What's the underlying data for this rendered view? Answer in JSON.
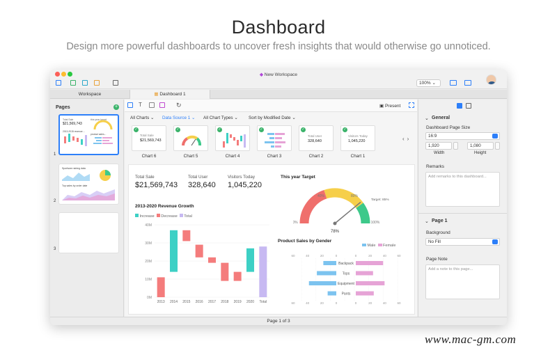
{
  "hero": {
    "title": "Dashboard",
    "subtitle": "Design more powerful dashboards to uncover fresh insights that would otherwise go unnoticed."
  },
  "window": {
    "title": "New Workspace",
    "zoom": "100%",
    "tabs": [
      "Workspace",
      "Dashboard 1"
    ]
  },
  "sidebar": {
    "title": "Pages",
    "pages": [
      {
        "num": "1",
        "preview": {
          "label1": "Total Sale",
          "value1": "$21,569,743",
          "label2": "this year target",
          "label3": "2013-2015 revenue ...",
          "label4": "product sales..."
        }
      },
      {
        "num": "2",
        "preview": {
          "label1": "Sportswe raining data",
          "label2": "Top sales by order date"
        }
      },
      {
        "num": "3",
        "preview": {}
      }
    ]
  },
  "toolbar": {
    "present": "Present"
  },
  "filters": [
    "All Charts",
    "Data Source 1",
    "All Chart Types",
    "Sort by Modified Date"
  ],
  "charts": [
    "Chart 6",
    "Chart 5",
    "Chart 4",
    "Chart 3",
    "Chart 2",
    "Chart 1"
  ],
  "chart_cards_text": {
    "chart2_label": "Total User",
    "chart2_value": "328,640",
    "chart1_label": "Visitors Today",
    "chart1_value": "1,045,220",
    "chart6_label": "Total Sale",
    "chart6_value": "$21,569,743"
  },
  "canvas": {
    "kpis": [
      {
        "label": "Total Sale",
        "value": "$21,569,743"
      },
      {
        "label": "Total User",
        "value": "328,640"
      },
      {
        "label": "Visitors Today",
        "value": "1,045,220"
      }
    ]
  },
  "chart_data": [
    {
      "type": "bar",
      "title": "2013-2020 Revenue Growth",
      "legend": [
        "Increase",
        "Decrease",
        "Total"
      ],
      "categories": [
        "2013",
        "2014",
        "2015",
        "2016",
        "2017",
        "2018",
        "2019",
        "2020",
        "Total"
      ],
      "series": [
        {
          "name": "Increase",
          "color": "#3dd0c5"
        },
        {
          "name": "Decrease",
          "color": "#f47c7c"
        },
        {
          "name": "Total",
          "color": "#c7b9f2"
        }
      ],
      "waterfall": [
        {
          "from": 0,
          "to": 11,
          "kind": "Decrease"
        },
        {
          "from": 14,
          "to": 37,
          "kind": "Increase"
        },
        {
          "from": 31,
          "to": 37,
          "kind": "Decrease"
        },
        {
          "from": 22,
          "to": 29,
          "kind": "Decrease"
        },
        {
          "from": 19,
          "to": 22,
          "kind": "Decrease"
        },
        {
          "from": 9,
          "to": 19,
          "kind": "Decrease"
        },
        {
          "from": 9,
          "to": 14,
          "kind": "Decrease"
        },
        {
          "from": 14,
          "to": 27,
          "kind": "Increase"
        },
        {
          "from": 0,
          "to": 28,
          "kind": "Total"
        }
      ],
      "ylim": [
        0,
        40
      ],
      "yticks": [
        "0M",
        "10M",
        "20M",
        "30M",
        "40M"
      ]
    },
    {
      "type": "gauge",
      "title": "This year Target",
      "value": 78,
      "value_label": "78%",
      "tick_labels": [
        "0%",
        "40%",
        "80%",
        "100%"
      ],
      "target_label": "Target: 85%",
      "bands": [
        {
          "from": 0,
          "to": 40,
          "color": "#ef6f6c"
        },
        {
          "from": 40,
          "to": 80,
          "color": "#f6cf4a"
        },
        {
          "from": 80,
          "to": 100,
          "color": "#3dc98a"
        }
      ]
    },
    {
      "type": "bar",
      "orientation": "horizontal",
      "title": "Product Sales by Gender",
      "categories": [
        "Backpack",
        "Tops",
        "Equipment",
        "Pants"
      ],
      "series": [
        {
          "name": "Male",
          "values": [
            18,
            27,
            38,
            12
          ],
          "color": "#7cc3ef"
        },
        {
          "name": "Female",
          "values": [
            38,
            24,
            40,
            25
          ],
          "color": "#e6a3d6"
        }
      ],
      "xticks_male": [
        "60",
        "40",
        "20",
        "0"
      ],
      "xticks_female": [
        "0",
        "20",
        "40",
        "60"
      ]
    }
  ],
  "inspector": {
    "general": "General",
    "page_size_label": "Dashboard Page Size",
    "page_size": "16:9",
    "width": "1,920",
    "height": "1,080",
    "width_label": "Width",
    "height_label": "Height",
    "remarks_label": "Remarks",
    "remarks_placeholder": "Add remarks to this dashboard...",
    "page_section": "Page 1",
    "background_label": "Background",
    "background": "No Fill",
    "note_label": "Page Note",
    "note_placeholder": "Add a note to this page..."
  },
  "status": {
    "page": "Page 1 of 3"
  },
  "watermark": "www.mac-gm.com"
}
